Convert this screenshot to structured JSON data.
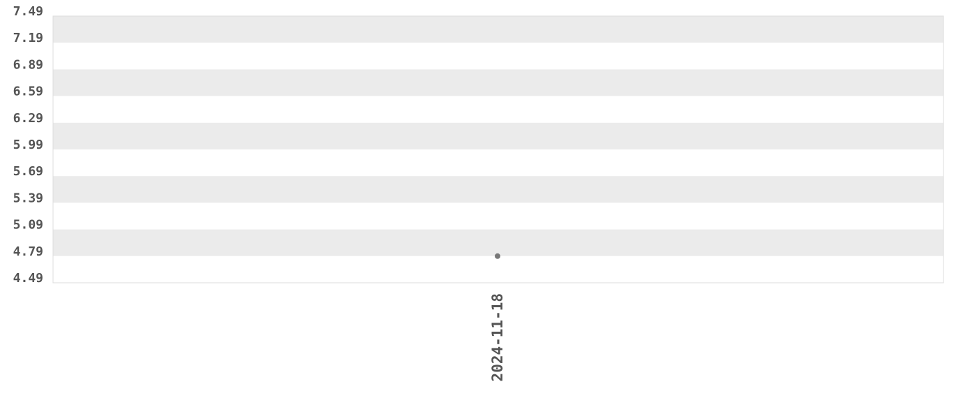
{
  "chart_data": {
    "type": "scatter",
    "title": "",
    "xlabel": "",
    "ylabel": "",
    "x_ticks": [
      "2024-11-18"
    ],
    "y_ticks": [
      "7.49",
      "7.19",
      "6.89",
      "6.59",
      "6.29",
      "5.99",
      "5.69",
      "5.39",
      "5.09",
      "4.79",
      "4.49"
    ],
    "ylim": [
      4.49,
      7.49
    ],
    "points": [
      {
        "x": "2024-11-18",
        "y": 4.79
      }
    ],
    "grid": "alternating horizontal bands",
    "colors": {
      "band": "#ebebeb",
      "point": "#777777",
      "text": "#555555",
      "border": "#dddddd"
    }
  }
}
